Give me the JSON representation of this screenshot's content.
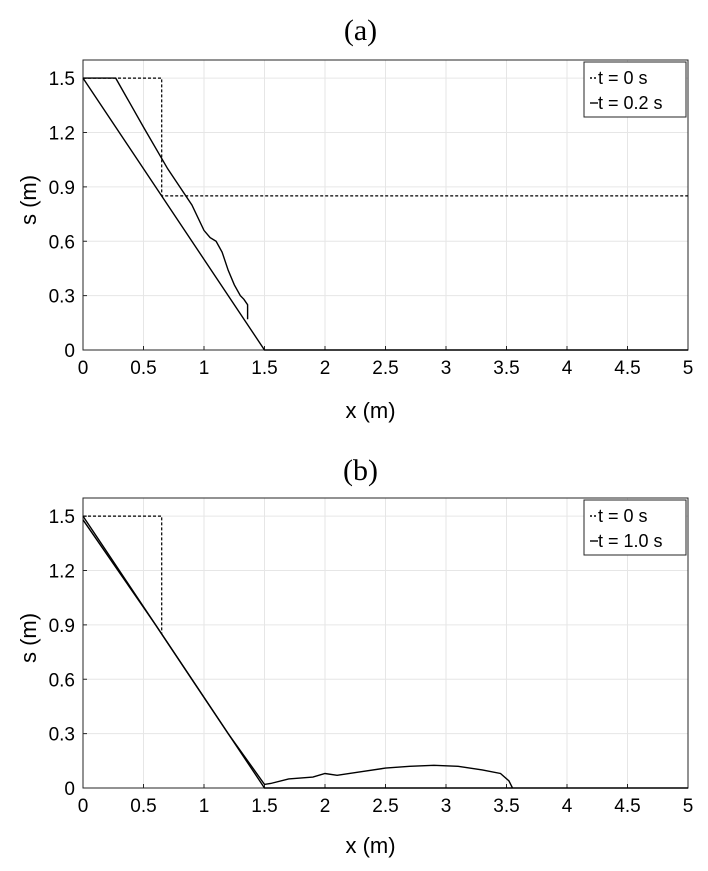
{
  "chart_data": [
    {
      "type": "line",
      "panel": "(a)",
      "xlabel": "x (m)",
      "ylabel": "s (m)",
      "xlim": [
        0,
        5
      ],
      "ylim": [
        0,
        1.6
      ],
      "xticks": [
        "0",
        "0.5",
        "1",
        "1.5",
        "2",
        "2.5",
        "3",
        "3.5",
        "4",
        "4.5",
        "5"
      ],
      "yticks": [
        "0",
        "0.3",
        "0.6",
        "0.9",
        "1.2",
        "1.5"
      ],
      "grid": true,
      "legend_position": "top-right",
      "series": [
        {
          "name": "t = 0 s",
          "style": "dotted",
          "x": [
            0,
            0.65,
            0.65,
            5
          ],
          "y": [
            1.5,
            1.5,
            0.85,
            0.85
          ]
        },
        {
          "name": "t = 0.2 s",
          "style": "solid",
          "x": [
            0,
            0.27,
            0.5,
            0.7,
            0.9,
            1.0,
            1.05,
            1.1,
            1.15,
            1.2,
            1.25,
            1.3,
            1.33,
            1.36,
            1.36
          ],
          "y": [
            1.5,
            1.5,
            1.23,
            1.0,
            0.8,
            0.66,
            0.62,
            0.6,
            0.54,
            0.44,
            0.36,
            0.3,
            0.28,
            0.25,
            0.17
          ]
        },
        {
          "name": "",
          "style": "solid",
          "x": [
            0,
            1.5,
            5
          ],
          "y": [
            1.5,
            0,
            0
          ]
        }
      ]
    },
    {
      "type": "line",
      "panel": "(b)",
      "xlabel": "x (m)",
      "ylabel": "s (m)",
      "xlim": [
        0,
        5
      ],
      "ylim": [
        0,
        1.6
      ],
      "xticks": [
        "0",
        "0.5",
        "1",
        "1.5",
        "2",
        "2.5",
        "3",
        "3.5",
        "4",
        "4.5",
        "5"
      ],
      "yticks": [
        "0",
        "0.3",
        "0.6",
        "0.9",
        "1.2",
        "1.5"
      ],
      "grid": true,
      "legend_position": "top-right",
      "series": [
        {
          "name": "t = 0 s",
          "style": "dotted",
          "x": [
            0,
            0.65,
            0.65
          ],
          "y": [
            1.5,
            1.5,
            0.85
          ]
        },
        {
          "name": "t = 1.0 s",
          "style": "solid",
          "x": [
            0,
            0.3,
            0.6,
            0.9,
            1.2,
            1.5,
            1.55,
            1.7,
            1.9,
            2.0,
            2.1,
            2.3,
            2.5,
            2.7,
            2.9,
            3.1,
            3.3,
            3.45,
            3.52,
            3.55
          ],
          "y": [
            1.48,
            1.19,
            0.9,
            0.6,
            0.3,
            0.02,
            0.025,
            0.05,
            0.06,
            0.08,
            0.07,
            0.09,
            0.11,
            0.12,
            0.125,
            0.12,
            0.1,
            0.08,
            0.04,
            0.0
          ]
        },
        {
          "name": "",
          "style": "solid",
          "x": [
            0,
            1.5,
            5
          ],
          "y": [
            1.5,
            0,
            0
          ]
        }
      ]
    }
  ]
}
